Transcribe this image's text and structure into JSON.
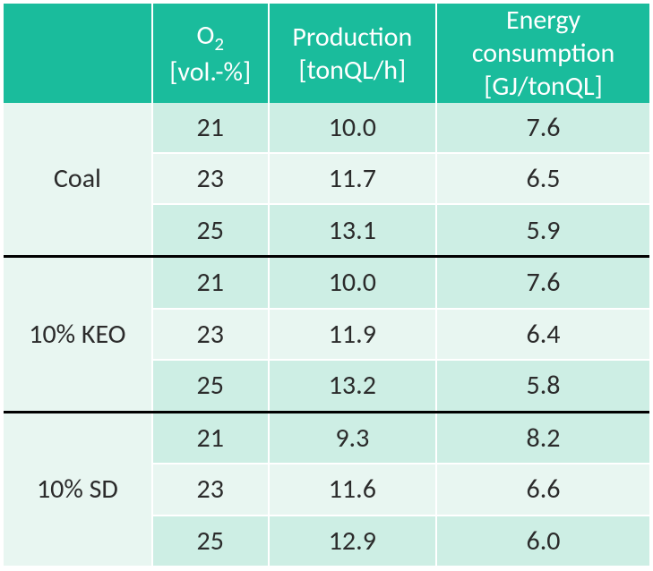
{
  "styling": {
    "header_bg": "#1abc9c",
    "header_fg": "#ffffff",
    "row_odd_bg": "#cdeee4",
    "row_even_bg": "#e8f6f1",
    "body_fg": "#2b2b2b",
    "separator_color": "#000000",
    "cell_border_color": "#ffffff",
    "font_family": "Calibri",
    "header_fontsize_pt": 22,
    "body_fontsize_pt": 22
  },
  "table": {
    "type": "table",
    "columns": [
      {
        "label": "",
        "width_pct": 23,
        "align": "center"
      },
      {
        "label_main": "O",
        "label_sub": "2",
        "label_unit": "[vol.-%]",
        "width_pct": 18,
        "align": "center"
      },
      {
        "label_main": "Production",
        "label_unit": "[tonQL/h]",
        "width_pct": 26,
        "align": "center"
      },
      {
        "label_main": "Energy consumption",
        "label_unit": "[GJ/tonQL]",
        "width_pct": 33,
        "align": "center"
      }
    ],
    "groups": [
      {
        "label": "Coal",
        "rows": [
          {
            "o2": "21",
            "prod": "10.0",
            "energy": "7.6"
          },
          {
            "o2": "23",
            "prod": "11.7",
            "energy": "6.5"
          },
          {
            "o2": "25",
            "prod": "13.1",
            "energy": "5.9"
          }
        ]
      },
      {
        "label": "10% KEO",
        "rows": [
          {
            "o2": "21",
            "prod": "10.0",
            "energy": "7.6"
          },
          {
            "o2": "23",
            "prod": "11.9",
            "energy": "6.4"
          },
          {
            "o2": "25",
            "prod": "13.2",
            "energy": "5.8"
          }
        ]
      },
      {
        "label": "10% SD",
        "rows": [
          {
            "o2": "21",
            "prod": "9.3",
            "energy": "8.2"
          },
          {
            "o2": "23",
            "prod": "11.6",
            "energy": "6.6"
          },
          {
            "o2": "25",
            "prod": "12.9",
            "energy": "6.0"
          }
        ]
      }
    ]
  }
}
